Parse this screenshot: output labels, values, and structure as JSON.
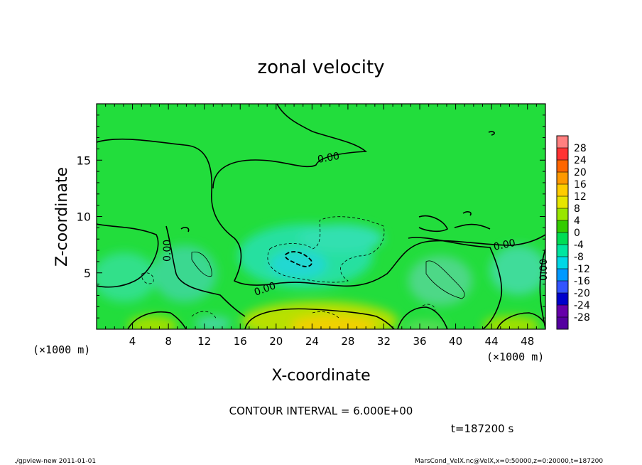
{
  "chart_data": {
    "type": "heatmap",
    "title": "zonal velocity",
    "xlabel": "X-coordinate",
    "ylabel": "Z-coordinate",
    "x_unit": "(×1000 m)",
    "y_unit": "(×1000 m)",
    "xlim": [
      0,
      50
    ],
    "ylim": [
      0,
      20
    ],
    "x_ticks": [
      4,
      8,
      12,
      16,
      20,
      24,
      28,
      32,
      36,
      40,
      44,
      48
    ],
    "y_ticks": [
      5,
      10,
      15
    ],
    "contour_interval_label": "CONTOUR INTERVAL = 6.000E+00",
    "contour_labels": [
      "0.00",
      "0.00",
      "0.00",
      "0.00",
      "0.00"
    ],
    "time_label": "t=187200 s",
    "colorbar": {
      "levels": [
        28,
        24,
        20,
        16,
        12,
        8,
        4,
        0,
        -4,
        -8,
        -12,
        -16,
        -20,
        -24,
        -28
      ],
      "colors": [
        "#ff8080",
        "#ff3333",
        "#ff6600",
        "#ff9900",
        "#ffcc00",
        "#e6e600",
        "#99e600",
        "#33cc00",
        "#00dd55",
        "#00e6a0",
        "#00d8e6",
        "#0099ff",
        "#3355ff",
        "#0000cc",
        "#6600aa",
        "#5500a0"
      ]
    }
  },
  "footer": {
    "left": "./gpview-new  2011-01-01",
    "right": "MarsCond_VelX.nc@VelX,x=0:50000,z=0:20000,t=187200"
  }
}
